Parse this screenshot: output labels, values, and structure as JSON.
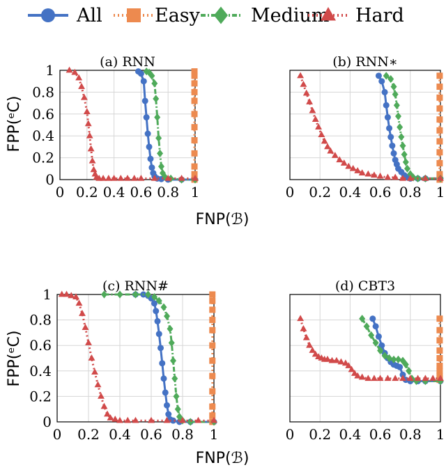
{
  "legend": [
    {
      "name": "All",
      "color": "#4472c4",
      "marker": "circle",
      "dash": "solid"
    },
    {
      "name": "Easy",
      "color": "#ed8a4f",
      "marker": "square",
      "dash": "dotted"
    },
    {
      "name": "Medium",
      "color": "#4faa5a",
      "marker": "diamond",
      "dash": "dashdot"
    },
    {
      "name": "Hard",
      "color": "#d14a4a",
      "marker": "triangle",
      "dash": "dotted"
    }
  ],
  "shared_xlabel": "FNP(ℬ)",
  "shared_ylabel": "FPP(ᵉC)",
  "chart_data": [
    {
      "type": "line",
      "title": "(a) RNN",
      "xlim": [
        0,
        1
      ],
      "ylim": [
        0,
        1
      ],
      "xticks": [
        "0",
        "0.2",
        "0.4",
        "0.6",
        "0.8",
        "1"
      ],
      "yticks": [
        "0",
        "0.2",
        "0.4",
        "0.6",
        "0.8",
        "1"
      ],
      "series": [
        {
          "name": "All",
          "x": [
            0.58,
            0.6,
            0.62,
            0.63,
            0.64,
            0.65,
            0.66,
            0.67,
            0.68,
            0.69,
            0.7,
            0.72,
            0.75,
            0.8,
            0.9,
            1.0
          ],
          "y": [
            0.99,
            0.97,
            0.9,
            0.72,
            0.57,
            0.42,
            0.3,
            0.19,
            0.11,
            0.06,
            0.03,
            0.01,
            0.005,
            0.0,
            0.0,
            0.0
          ]
        },
        {
          "name": "Easy",
          "x": [
            0.995,
            0.995,
            0.995,
            0.995,
            0.995,
            0.995,
            0.995,
            0.995,
            0.995,
            0.995,
            0.995,
            0.995
          ],
          "y": [
            0.99,
            0.95,
            0.88,
            0.8,
            0.72,
            0.6,
            0.48,
            0.36,
            0.24,
            0.12,
            0.05,
            0.0
          ]
        },
        {
          "name": "Medium",
          "x": [
            0.64,
            0.66,
            0.68,
            0.7,
            0.71,
            0.72,
            0.73,
            0.74,
            0.75,
            0.76,
            0.78,
            0.82,
            0.9,
            1.0
          ],
          "y": [
            0.99,
            0.98,
            0.95,
            0.88,
            0.74,
            0.57,
            0.38,
            0.24,
            0.12,
            0.06,
            0.02,
            0.01,
            0.0,
            0.0
          ]
        },
        {
          "name": "Hard",
          "x": [
            0.07,
            0.11,
            0.14,
            0.16,
            0.18,
            0.2,
            0.21,
            0.22,
            0.23,
            0.24,
            0.25,
            0.26,
            0.27,
            0.29,
            0.32,
            0.36,
            0.4,
            0.45,
            0.5,
            0.55,
            0.6,
            0.7,
            0.8,
            0.9,
            1.0
          ],
          "y": [
            1.0,
            0.98,
            0.93,
            0.85,
            0.75,
            0.62,
            0.51,
            0.4,
            0.28,
            0.17,
            0.09,
            0.05,
            0.02,
            0.01,
            0.01,
            0.01,
            0.01,
            0.01,
            0.01,
            0.01,
            0.01,
            0.01,
            0.01,
            0.01,
            0.01
          ]
        }
      ]
    },
    {
      "type": "line",
      "title": "(b) RNN∗",
      "xlim": [
        0,
        1
      ],
      "ylim": [
        0,
        1
      ],
      "xticks": [
        "0",
        "0.2",
        "0.4",
        "0.6",
        "0.8",
        "1"
      ],
      "yticks": [],
      "series": [
        {
          "name": "All",
          "x": [
            0.59,
            0.61,
            0.63,
            0.64,
            0.65,
            0.66,
            0.67,
            0.68,
            0.69,
            0.7,
            0.71,
            0.72,
            0.74,
            0.76,
            0.78,
            0.8,
            0.85,
            0.9,
            1.0
          ],
          "y": [
            0.95,
            0.9,
            0.8,
            0.68,
            0.57,
            0.47,
            0.39,
            0.31,
            0.24,
            0.18,
            0.14,
            0.1,
            0.07,
            0.04,
            0.02,
            0.01,
            0.01,
            0.01,
            0.01
          ]
        },
        {
          "name": "Easy",
          "x": [
            0.995,
            0.995,
            0.995,
            0.995,
            0.995,
            0.995,
            0.995,
            0.995,
            0.995,
            0.995,
            0.995
          ],
          "y": [
            0.95,
            0.85,
            0.75,
            0.65,
            0.55,
            0.45,
            0.35,
            0.25,
            0.15,
            0.05,
            0.0
          ]
        },
        {
          "name": "Medium",
          "x": [
            0.64,
            0.67,
            0.69,
            0.7,
            0.71,
            0.72,
            0.73,
            0.74,
            0.75,
            0.76,
            0.77,
            0.78,
            0.8,
            0.82,
            0.85,
            0.9,
            1.0
          ],
          "y": [
            0.95,
            0.92,
            0.85,
            0.78,
            0.68,
            0.58,
            0.48,
            0.39,
            0.31,
            0.23,
            0.16,
            0.1,
            0.05,
            0.02,
            0.01,
            0.01,
            0.01
          ]
        },
        {
          "name": "Hard",
          "x": [
            0.07,
            0.09,
            0.11,
            0.13,
            0.15,
            0.17,
            0.19,
            0.21,
            0.23,
            0.25,
            0.27,
            0.3,
            0.33,
            0.36,
            0.39,
            0.42,
            0.45,
            0.48,
            0.52,
            0.56,
            0.6,
            0.65,
            0.7,
            0.75,
            0.8,
            0.9,
            1.0
          ],
          "y": [
            0.95,
            0.87,
            0.79,
            0.71,
            0.63,
            0.55,
            0.48,
            0.41,
            0.35,
            0.3,
            0.26,
            0.22,
            0.18,
            0.15,
            0.12,
            0.1,
            0.08,
            0.06,
            0.05,
            0.04,
            0.03,
            0.02,
            0.02,
            0.01,
            0.01,
            0.01,
            0.01
          ]
        }
      ]
    },
    {
      "type": "line",
      "title": "(c) RNN#",
      "xlim": [
        0,
        1
      ],
      "ylim": [
        0,
        1
      ],
      "xticks": [
        "0",
        "0.2",
        "0.4",
        "0.6",
        "0.8",
        "1"
      ],
      "yticks": [
        "0",
        "0.2",
        "0.4",
        "0.6",
        "0.8",
        "1"
      ],
      "series": [
        {
          "name": "All",
          "x": [
            0.5,
            0.55,
            0.58,
            0.6,
            0.62,
            0.63,
            0.64,
            0.65,
            0.66,
            0.67,
            0.68,
            0.69,
            0.7,
            0.71,
            0.72,
            0.74,
            0.78,
            0.85,
            1.0
          ],
          "y": [
            1.0,
            1.0,
            0.99,
            0.97,
            0.93,
            0.87,
            0.79,
            0.69,
            0.58,
            0.46,
            0.34,
            0.23,
            0.13,
            0.06,
            0.02,
            0.01,
            0.0,
            0.0,
            0.0
          ]
        },
        {
          "name": "Easy",
          "x": [
            0.99,
            0.99,
            0.99,
            0.99,
            0.99,
            0.99,
            0.99,
            0.99,
            0.99,
            0.99,
            0.99,
            0.99
          ],
          "y": [
            1.0,
            0.95,
            0.88,
            0.8,
            0.72,
            0.6,
            0.48,
            0.36,
            0.24,
            0.12,
            0.05,
            0.0
          ]
        },
        {
          "name": "Medium",
          "x": [
            0.3,
            0.4,
            0.5,
            0.58,
            0.62,
            0.65,
            0.68,
            0.7,
            0.72,
            0.73,
            0.74,
            0.75,
            0.76,
            0.77,
            0.78,
            0.8,
            0.85,
            1.0
          ],
          "y": [
            1.0,
            1.0,
            1.0,
            1.0,
            0.98,
            0.95,
            0.9,
            0.83,
            0.73,
            0.62,
            0.48,
            0.34,
            0.2,
            0.1,
            0.04,
            0.01,
            0.0,
            0.0
          ]
        },
        {
          "name": "Hard",
          "x": [
            0.03,
            0.06,
            0.09,
            0.12,
            0.14,
            0.16,
            0.18,
            0.2,
            0.22,
            0.24,
            0.26,
            0.28,
            0.3,
            0.32,
            0.34,
            0.37,
            0.4,
            0.45,
            0.5,
            0.6,
            0.7,
            0.8,
            0.9,
            1.0
          ],
          "y": [
            1.0,
            1.0,
            0.99,
            0.98,
            0.93,
            0.85,
            0.74,
            0.62,
            0.5,
            0.39,
            0.29,
            0.2,
            0.12,
            0.06,
            0.03,
            0.02,
            0.01,
            0.01,
            0.01,
            0.01,
            0.01,
            0.01,
            0.01,
            0.01
          ]
        }
      ]
    },
    {
      "type": "line",
      "title": "(d) CBT3",
      "xlim": [
        0,
        1
      ],
      "ylim": [
        0,
        1
      ],
      "xticks": [
        "0",
        "0.2",
        "0.4",
        "0.6",
        "0.8",
        "1"
      ],
      "yticks": [],
      "series": [
        {
          "name": "All",
          "x": [
            0.55,
            0.57,
            0.59,
            0.61,
            0.63,
            0.65,
            0.67,
            0.69,
            0.71,
            0.73,
            0.75,
            0.77,
            0.8,
            0.85,
            0.9,
            1.0
          ],
          "y": [
            0.81,
            0.75,
            0.67,
            0.6,
            0.54,
            0.5,
            0.47,
            0.45,
            0.44,
            0.43,
            0.37,
            0.33,
            0.32,
            0.32,
            0.32,
            0.32
          ]
        },
        {
          "name": "Easy",
          "x": [
            0.995,
            0.995,
            0.995,
            0.995,
            0.995,
            0.995,
            0.995,
            0.995,
            0.995,
            0.995
          ],
          "y": [
            0.81,
            0.72,
            0.64,
            0.56,
            0.5,
            0.44,
            0.4,
            0.36,
            0.34,
            0.33
          ]
        },
        {
          "name": "Medium",
          "x": [
            0.48,
            0.51,
            0.54,
            0.57,
            0.6,
            0.63,
            0.66,
            0.69,
            0.72,
            0.75,
            0.77,
            0.79,
            0.81,
            0.84,
            0.9,
            1.0
          ],
          "y": [
            0.81,
            0.75,
            0.68,
            0.62,
            0.56,
            0.52,
            0.5,
            0.49,
            0.49,
            0.48,
            0.45,
            0.4,
            0.34,
            0.32,
            0.32,
            0.32
          ]
        },
        {
          "name": "Hard",
          "x": [
            0.07,
            0.09,
            0.11,
            0.13,
            0.15,
            0.17,
            0.19,
            0.21,
            0.23,
            0.25,
            0.28,
            0.31,
            0.34,
            0.37,
            0.39,
            0.41,
            0.43,
            0.45,
            0.48,
            0.52,
            0.56,
            0.6,
            0.65,
            0.7,
            0.75,
            0.8,
            0.85,
            0.9,
            0.95,
            1.0
          ],
          "y": [
            0.81,
            0.73,
            0.66,
            0.6,
            0.56,
            0.53,
            0.51,
            0.5,
            0.49,
            0.49,
            0.48,
            0.48,
            0.47,
            0.46,
            0.44,
            0.41,
            0.38,
            0.36,
            0.35,
            0.34,
            0.34,
            0.34,
            0.34,
            0.34,
            0.34,
            0.34,
            0.34,
            0.34,
            0.34,
            0.34
          ]
        }
      ]
    }
  ]
}
